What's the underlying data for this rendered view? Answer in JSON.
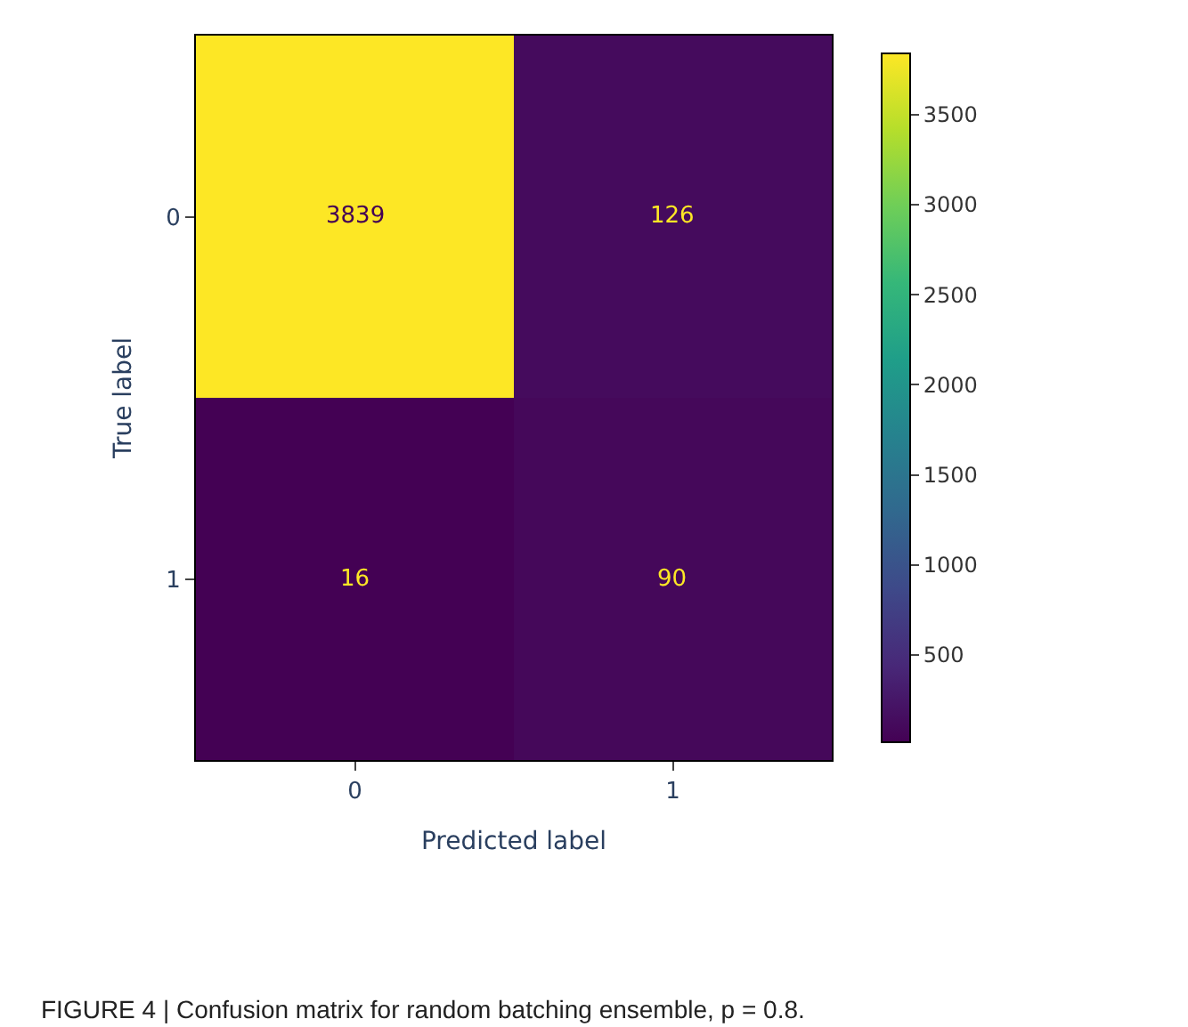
{
  "chart_data": {
    "type": "heatmap",
    "categories": [
      "0",
      "1"
    ],
    "y_categories": [
      "0",
      "1"
    ],
    "cells": [
      [
        3839,
        126
      ],
      [
        16,
        90
      ]
    ],
    "data_labels": true,
    "clim": [
      16,
      3839
    ],
    "cticks": [
      500,
      1000,
      1500,
      2000,
      2500,
      3000,
      3500
    ],
    "xlabel": "Predicted label",
    "ylabel": "True label",
    "annotations": [
      "FIGURE 4 | Confusion matrix for random batching ensemble, p = 0.8."
    ]
  }
}
